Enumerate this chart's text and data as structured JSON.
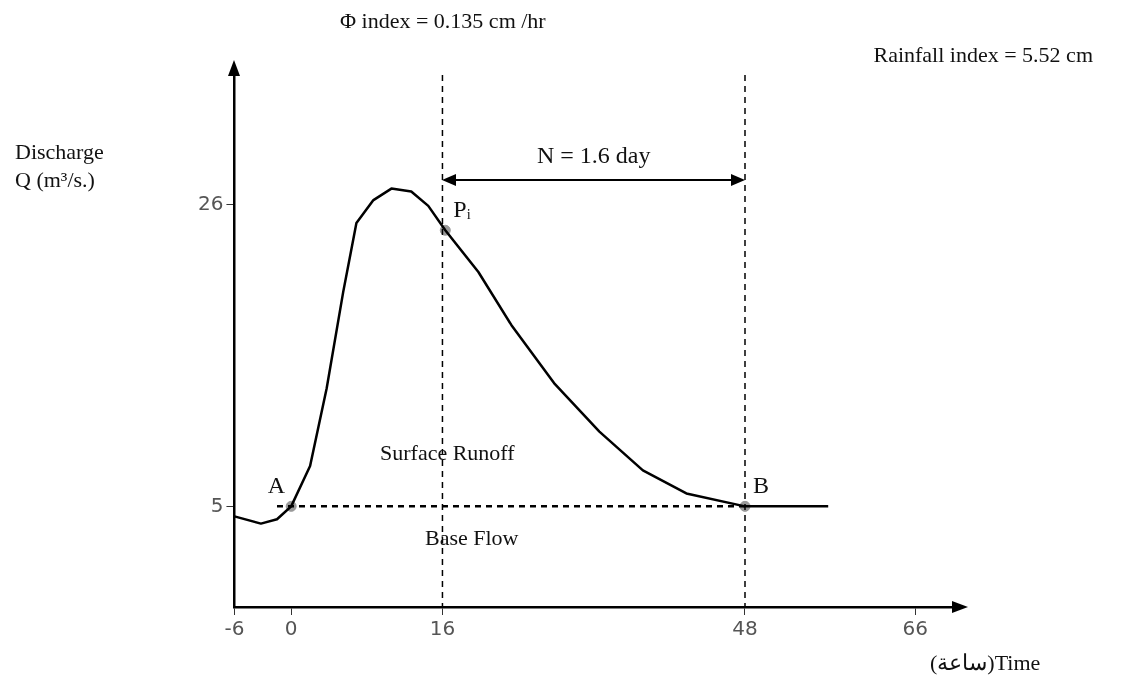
{
  "chart_data": {
    "type": "line",
    "title": "Φ index = 0.135 cm /hr",
    "xlabel": "(ساعة)Time",
    "ylabel": "Discharge\nQ (m³/s.)",
    "xlim": [
      -6,
      70
    ],
    "xticks": [
      -6,
      0,
      16,
      48,
      66
    ],
    "ylim": [
      -2,
      35
    ],
    "yticks": [
      5,
      26
    ],
    "legend": false,
    "marker": "none",
    "series": [
      {
        "color": "#000000",
        "x": [
          -6,
          -3.2,
          -1.5,
          0,
          2,
          3.75,
          5.5,
          6.9,
          8.7,
          10.6,
          12.7,
          14.5,
          16.3,
          19.8,
          23.3,
          27.9,
          32.6,
          37.2,
          41.8,
          48,
          56.8
        ],
        "values": [
          4.3,
          3.8,
          4.1,
          5,
          7.8,
          13.2,
          19.9,
          24.7,
          26.3,
          27.1,
          26.9,
          25.9,
          24.2,
          21.3,
          17.6,
          13.5,
          10.2,
          7.5,
          5.9,
          5,
          5
        ]
      },
      {
        "color": "#000000",
        "line_style": "dashed",
        "x": [
          -1.5,
          48
        ],
        "values": [
          5,
          5
        ]
      },
      {
        "type": "scatter",
        "color": "#999999",
        "marker": "circle",
        "x": [
          0,
          16.3,
          48
        ],
        "values": [
          5,
          24.2,
          5
        ]
      }
    ],
    "ref_lines": [
      {
        "axis": "x",
        "value": 16,
        "line_style": "dashed",
        "color": "#000000"
      },
      {
        "axis": "x",
        "value": 48,
        "line_style": "dashed",
        "color": "#000000"
      }
    ],
    "annotations": [
      "Rainfall index = 5.52 cm",
      "N = 1.6 day",
      "Surface Runoff",
      "Base Flow",
      {
        "text": "A",
        "x": 0,
        "y": 5
      },
      {
        "text": "Pᵢ",
        "x": 16.3,
        "y": 24.2
      },
      {
        "text": "B",
        "x": 48,
        "y": 5
      }
    ]
  }
}
